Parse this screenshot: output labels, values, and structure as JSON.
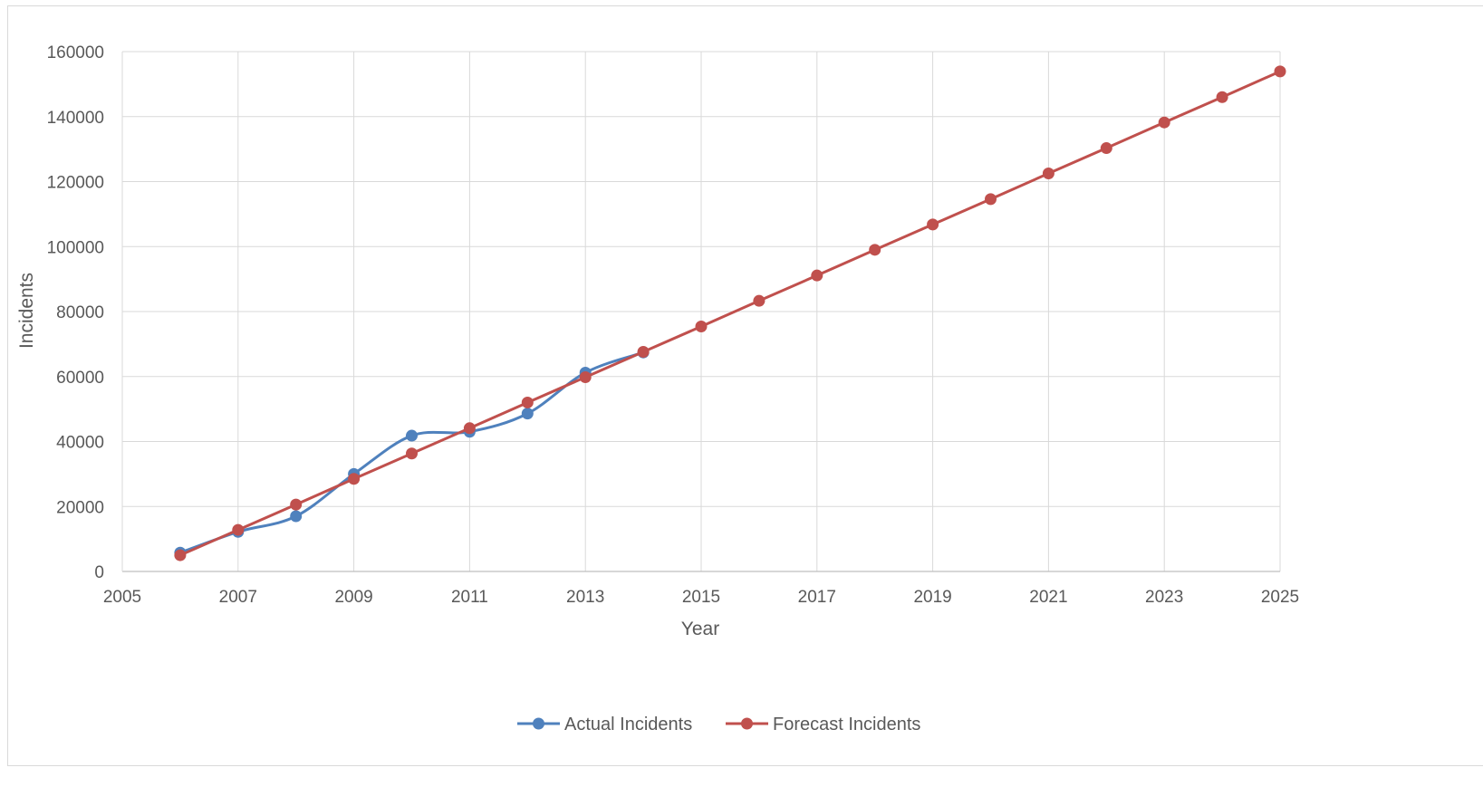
{
  "chart_data": {
    "type": "line",
    "title": "",
    "xlabel": "Year",
    "ylabel": "Incidents",
    "xlim": [
      2005,
      2025
    ],
    "ylim": [
      0,
      160000
    ],
    "x_ticks": [
      "2005",
      "2007",
      "2009",
      "2011",
      "2013",
      "2015",
      "2017",
      "2019",
      "2021",
      "2023",
      "2025"
    ],
    "y_ticks": [
      "0",
      "20000",
      "40000",
      "60000",
      "80000",
      "100000",
      "120000",
      "140000",
      "160000"
    ],
    "grid": true,
    "legend_position": "bottom",
    "series": [
      {
        "name": "Actual Incidents",
        "color": "#4f81bd",
        "smooth": true,
        "points": [
          {
            "x": 2006,
            "y": 5800
          },
          {
            "x": 2007,
            "y": 12200
          },
          {
            "x": 2008,
            "y": 17000
          },
          {
            "x": 2009,
            "y": 30000
          },
          {
            "x": 2010,
            "y": 41800
          },
          {
            "x": 2011,
            "y": 43000
          },
          {
            "x": 2012,
            "y": 48600
          },
          {
            "x": 2013,
            "y": 61200
          },
          {
            "x": 2014,
            "y": 67400
          }
        ]
      },
      {
        "name": "Forecast Incidents",
        "color": "#c0504d",
        "smooth": false,
        "points": [
          {
            "x": 2006,
            "y": 5000
          },
          {
            "x": 2007,
            "y": 12800
          },
          {
            "x": 2008,
            "y": 20600
          },
          {
            "x": 2009,
            "y": 28500
          },
          {
            "x": 2010,
            "y": 36300
          },
          {
            "x": 2011,
            "y": 44100
          },
          {
            "x": 2012,
            "y": 52000
          },
          {
            "x": 2013,
            "y": 59800
          },
          {
            "x": 2014,
            "y": 67600
          },
          {
            "x": 2015,
            "y": 75400
          },
          {
            "x": 2016,
            "y": 83300
          },
          {
            "x": 2017,
            "y": 91100
          },
          {
            "x": 2018,
            "y": 99000
          },
          {
            "x": 2019,
            "y": 106800
          },
          {
            "x": 2020,
            "y": 114600
          },
          {
            "x": 2021,
            "y": 122500
          },
          {
            "x": 2022,
            "y": 130300
          },
          {
            "x": 2023,
            "y": 138200
          },
          {
            "x": 2024,
            "y": 146000
          },
          {
            "x": 2025,
            "y": 153900
          }
        ]
      }
    ]
  }
}
